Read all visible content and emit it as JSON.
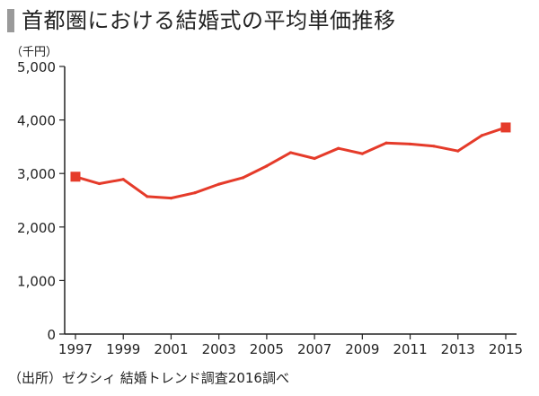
{
  "page": {
    "title": "首都圏における結婚式の平均単価推移",
    "source": "（出所）ゼクシィ 結婚トレンド調査2016調べ"
  },
  "colors": {
    "line": "#e53b2a",
    "axis": "#222222",
    "title_bar": "#9a9a9a"
  },
  "chart_data": {
    "type": "line",
    "title": "首都圏における結婚式の平均単価推移",
    "unit_label": "（千円）",
    "x": [
      1997,
      1998,
      1999,
      2000,
      2001,
      2002,
      2003,
      2004,
      2005,
      2006,
      2007,
      2008,
      2009,
      2010,
      2011,
      2012,
      2013,
      2014,
      2015
    ],
    "x_tick_labels": [
      "1997",
      "1999",
      "2001",
      "2003",
      "2005",
      "2007",
      "2009",
      "2011",
      "2013",
      "2015"
    ],
    "y_tick_labels": [
      "0",
      "1,000",
      "2,000",
      "3,000",
      "4,000",
      "5,000"
    ],
    "y_ticks": [
      0,
      1000,
      2000,
      3000,
      4000,
      5000
    ],
    "series": [
      {
        "values": [
          2940,
          2810,
          2890,
          2570,
          2540,
          2640,
          2800,
          2920,
          3140,
          3390,
          3280,
          3470,
          3370,
          3570,
          3550,
          3510,
          3420,
          3710,
          3860
        ],
        "marker_endpoints": true
      }
    ],
    "xlim": [
      1997,
      2015
    ],
    "ylim": [
      0,
      5000
    ],
    "grid": false,
    "legend": "none"
  }
}
